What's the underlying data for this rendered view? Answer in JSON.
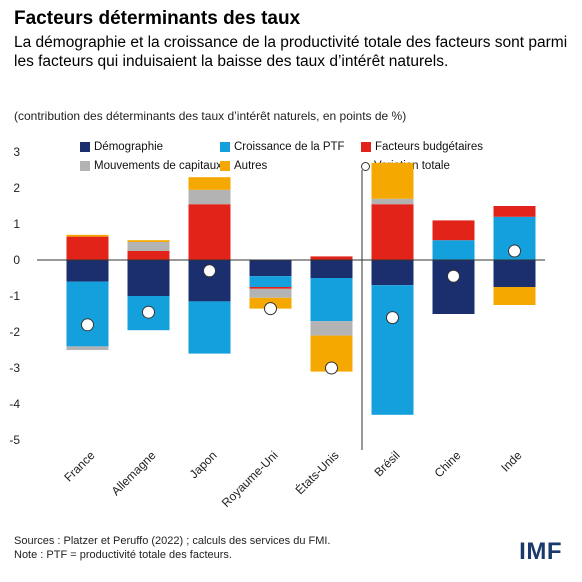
{
  "header": {
    "title": "Facteurs déterminants des taux",
    "subtitle": "La démographie et la croissance de la productivité totale des facteurs sont parmi les facteurs qui induisaient la baisse des taux d’intérêt naturels.",
    "note": "(contribution des déterminants des taux d’intérêt naturels, en points de %)"
  },
  "footer": {
    "source": "Sources : Platzer et Peruffo (2022) ; calculs des services du FMI.",
    "note": "Note : PTF = productivité totale des facteurs.",
    "logo": "IMF"
  },
  "chart_data": {
    "type": "bar",
    "stacked": true,
    "ylim": [
      -5,
      3
    ],
    "yticks": [
      3,
      2,
      1,
      0,
      -1,
      -2,
      -3,
      -4,
      -5
    ],
    "categories": [
      "France",
      "Allemagne",
      "Japon",
      "Royaume-Uni",
      "États-Unis",
      "Brésil",
      "Chine",
      "Inde"
    ],
    "series": [
      {
        "name": "Démographie",
        "color": "#1b2f6e",
        "values": [
          -0.6,
          -1.0,
          -1.15,
          -0.45,
          -0.5,
          -0.7,
          -1.5,
          -0.75
        ]
      },
      {
        "name": "Croissance de la PTF",
        "color": "#13a0dc",
        "values": [
          -1.8,
          -0.95,
          -1.45,
          -0.3,
          -1.2,
          -3.6,
          0.55,
          1.2
        ]
      },
      {
        "name": "Facteurs budgétaires",
        "color": "#e2231a",
        "values": [
          0.65,
          0.25,
          1.55,
          -0.05,
          0.1,
          1.55,
          0.55,
          0.3
        ]
      },
      {
        "name": "Mouvements de capitaux",
        "color": "#b3b3b3",
        "values": [
          -0.1,
          0.25,
          0.4,
          -0.25,
          -0.4,
          0.15,
          0.0,
          0.0
        ]
      },
      {
        "name": "Autres",
        "color": "#f5a800",
        "values": [
          0.05,
          0.05,
          0.35,
          -0.3,
          -1.0,
          1.0,
          0.0,
          -0.5
        ]
      }
    ],
    "total": {
      "name": "Variation totale",
      "values": [
        -1.8,
        -1.45,
        -0.3,
        -1.35,
        -3.0,
        -1.6,
        -0.45,
        0.25
      ]
    },
    "divider_after": "États-Unis",
    "grid": false,
    "legend": "top"
  }
}
